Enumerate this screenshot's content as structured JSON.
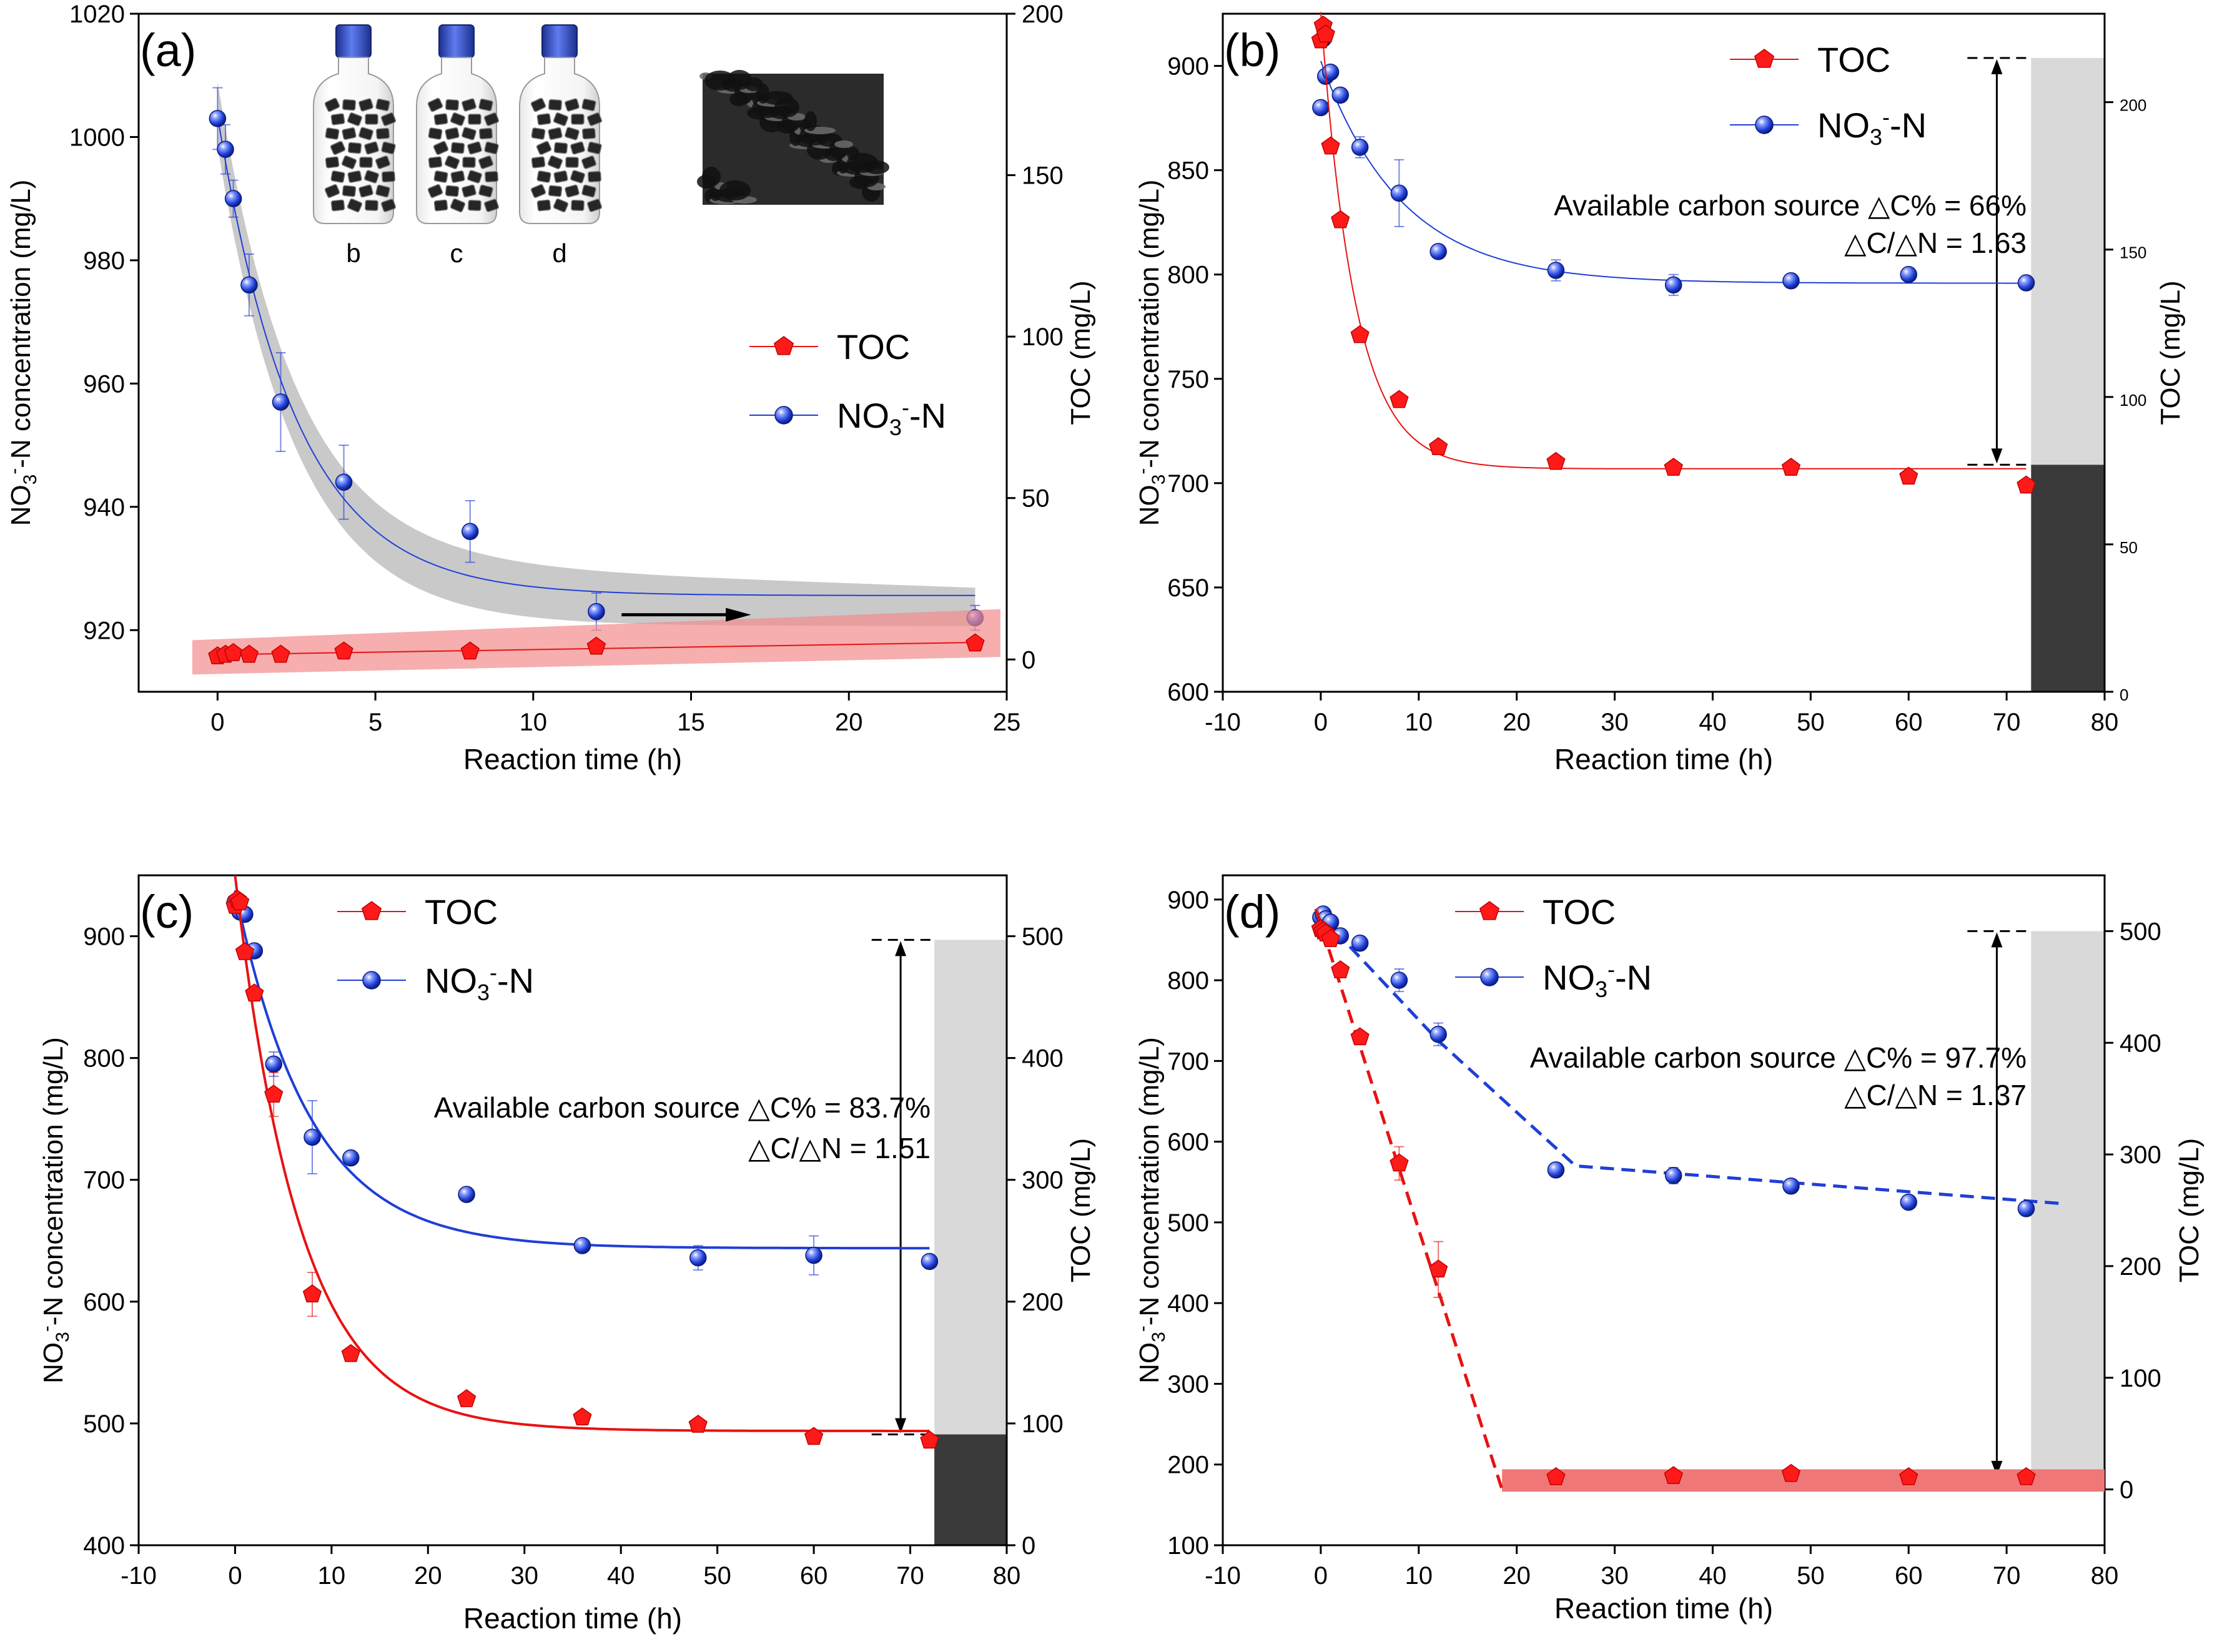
{
  "figure": {
    "description_panels": 4
  },
  "chart_data": [
    {
      "panel": "(a)",
      "type": "line",
      "xlabel": "Reaction time (h)",
      "ylabel_left": "NO3--N concentration (mg/L)",
      "ylabel_right": "TOC (mg/L)",
      "xlim": [
        -2.5,
        25
      ],
      "xticks": [
        0,
        5,
        10,
        15,
        20,
        25
      ],
      "ylim_left": [
        910,
        1020
      ],
      "yticks_left": [
        920,
        940,
        960,
        980,
        1000,
        1020
      ],
      "ylim_right": [
        -10,
        200
      ],
      "yticks_right": [
        0,
        50,
        100,
        150,
        200
      ],
      "legend": [
        "TOC",
        "NO3--N"
      ],
      "inset_labels": [
        "b",
        "c",
        "d"
      ],
      "series": [
        {
          "name": "NO3--N",
          "axis": "left",
          "color": "#1f3fd6",
          "fit": "smooth",
          "band": true,
          "x": [
            0,
            0.25,
            0.5,
            1,
            2,
            4,
            8,
            12,
            24
          ],
          "y": [
            1003,
            998,
            990,
            976,
            957,
            944,
            936,
            923,
            922
          ],
          "err": [
            5,
            4,
            3,
            5,
            8,
            6,
            5,
            3,
            2
          ]
        },
        {
          "name": "TOC",
          "axis": "right",
          "color": "#e81212",
          "fit": "linear",
          "band": true,
          "x": [
            0,
            0.25,
            0.5,
            1,
            2,
            4,
            8,
            12,
            24
          ],
          "y": [
            1,
            1.5,
            2,
            1.5,
            1.5,
            2.5,
            2.5,
            4,
            5
          ],
          "err": [
            0,
            0,
            0,
            0,
            0,
            0,
            0,
            0,
            0
          ]
        }
      ]
    },
    {
      "panel": "(b)",
      "type": "line",
      "xlabel": "Reaction time (h)",
      "ylabel_left": "NO3--N concentration (mg/L)",
      "ylabel_right": "TOC (mg/L)",
      "xlim": [
        -10,
        80
      ],
      "xticks": [
        -10,
        0,
        10,
        20,
        30,
        40,
        50,
        60,
        70,
        80
      ],
      "ylim_left": [
        600,
        925
      ],
      "yticks_left": [
        600,
        650,
        700,
        750,
        800,
        850,
        900
      ],
      "ylim_right": [
        0,
        230
      ],
      "yticks_right": [
        0,
        50,
        100,
        150,
        200
      ],
      "legend": [
        "TOC",
        "NO3--N"
      ],
      "annotation": [
        "Available carbon source △C% = 66%",
        "△C/△N = 1.63"
      ],
      "bar": {
        "x_start": 72.5,
        "x_end": 80,
        "total": 215,
        "residual": 77
      },
      "series": [
        {
          "name": "NO3--N",
          "axis": "left",
          "color": "#1f3fd6",
          "fit": "smooth",
          "x": [
            0,
            0.25,
            0.5,
            1,
            2,
            4,
            8,
            12,
            24,
            36,
            48,
            60,
            72
          ],
          "y": [
            880,
            913,
            895,
            897,
            886,
            861,
            839,
            811,
            802,
            795,
            797,
            800,
            796
          ],
          "err": [
            0,
            0,
            0,
            0,
            0,
            5,
            16,
            0,
            5,
            5,
            3,
            3,
            3
          ]
        },
        {
          "name": "TOC",
          "axis": "right",
          "color": "#e81212",
          "fit": "smooth",
          "x": [
            0,
            0.25,
            0.5,
            1,
            2,
            4,
            8,
            12,
            24,
            36,
            48,
            60,
            72
          ],
          "y": [
            221,
            226,
            223,
            185,
            160,
            121,
            99,
            83,
            78,
            76,
            76,
            73,
            70
          ],
          "err": [
            0,
            0,
            0,
            0,
            0,
            0,
            0,
            0,
            0,
            0,
            0,
            0,
            0
          ]
        }
      ]
    },
    {
      "panel": "(c)",
      "type": "line",
      "xlabel": "Reaction time (h)",
      "ylabel_left": "NO3--N concentration (mg/L)",
      "ylabel_right": "TOC (mg/L)",
      "xlim": [
        -10,
        80
      ],
      "xticks": [
        -10,
        0,
        10,
        20,
        30,
        40,
        50,
        60,
        70,
        80
      ],
      "ylim_left": [
        400,
        950
      ],
      "yticks_left": [
        400,
        500,
        600,
        700,
        800,
        900
      ],
      "ylim_right": [
        0,
        550
      ],
      "yticks_right": [
        0,
        100,
        200,
        300,
        400,
        500
      ],
      "legend": [
        "TOC",
        "NO3--N"
      ],
      "annotation": [
        "Available carbon source △C% = 83.7%",
        "△C/△N = 1.51"
      ],
      "bar": {
        "x_start": 72.5,
        "x_end": 80,
        "total": 497,
        "residual": 91
      },
      "series": [
        {
          "name": "NO3--N",
          "axis": "left",
          "color": "#1f3fd6",
          "fit": "smooth",
          "x": [
            0,
            0.25,
            0.5,
            1,
            2,
            4,
            8,
            12,
            24,
            36,
            48,
            60,
            72
          ],
          "y": [
            928,
            925,
            920,
            918,
            888,
            795,
            735,
            718,
            688,
            646,
            636,
            638,
            633
          ],
          "err": [
            0,
            0,
            0,
            0,
            0,
            10,
            30,
            0,
            0,
            5,
            10,
            16,
            0
          ]
        },
        {
          "name": "TOC",
          "axis": "right",
          "color": "#e81212",
          "fit": "smooth",
          "x": [
            0,
            0.25,
            0.5,
            1,
            2,
            4,
            8,
            12,
            24,
            36,
            48,
            60,
            72
          ],
          "y": [
            525,
            530,
            528,
            487,
            453,
            370,
            206,
            157,
            120,
            105,
            99,
            89,
            86
          ],
          "err": [
            0,
            0,
            0,
            0,
            0,
            18,
            18,
            0,
            0,
            0,
            0,
            0,
            0
          ]
        }
      ]
    },
    {
      "panel": "(d)",
      "type": "line",
      "xlabel": "Reaction time (h)",
      "ylabel_left": "NO3--N concentration (mg/L)",
      "ylabel_right": "TOC (mg/L)",
      "xlim": [
        -10,
        80
      ],
      "xticks": [
        -10,
        0,
        10,
        20,
        30,
        40,
        50,
        60,
        70,
        80
      ],
      "ylim_left": [
        100,
        930
      ],
      "yticks_left": [
        100,
        200,
        300,
        400,
        500,
        600,
        700,
        800,
        900
      ],
      "ylim_right": [
        -50,
        550
      ],
      "yticks_right": [
        0,
        100,
        200,
        300,
        400,
        500
      ],
      "legend": [
        "TOC",
        "NO3--N"
      ],
      "annotation": [
        "Available carbon source  △C% = 97.7%",
        "△C/△N = 1.37"
      ],
      "bar": {
        "x_start": 72.5,
        "x_end": 80,
        "total": 500,
        "residual": 11
      },
      "series": [
        {
          "name": "NO3--N",
          "axis": "left",
          "color": "#1f3fd6",
          "fit": "piecewise-linear",
          "x": [
            0,
            0.25,
            0.5,
            1,
            2,
            4,
            8,
            12,
            24,
            36,
            48,
            60,
            72
          ],
          "y": [
            878,
            882,
            876,
            872,
            855,
            846,
            800,
            733,
            565,
            558,
            545,
            525,
            517
          ],
          "err": [
            0,
            0,
            0,
            0,
            0,
            0,
            14,
            14,
            0,
            10,
            0,
            0,
            0
          ]
        },
        {
          "name": "TOC",
          "axis": "right",
          "color": "#e81212",
          "fit": "piecewise-linear",
          "x": [
            0,
            0.25,
            0.5,
            1,
            2,
            4,
            8,
            12,
            24,
            36,
            48,
            60,
            72
          ],
          "y": [
            502,
            500,
            498,
            493,
            465,
            405,
            292,
            197,
            11,
            12,
            14,
            11,
            11
          ],
          "err": [
            0,
            0,
            0,
            0,
            0,
            0,
            15,
            25,
            0,
            0,
            0,
            0,
            0
          ]
        }
      ]
    }
  ]
}
